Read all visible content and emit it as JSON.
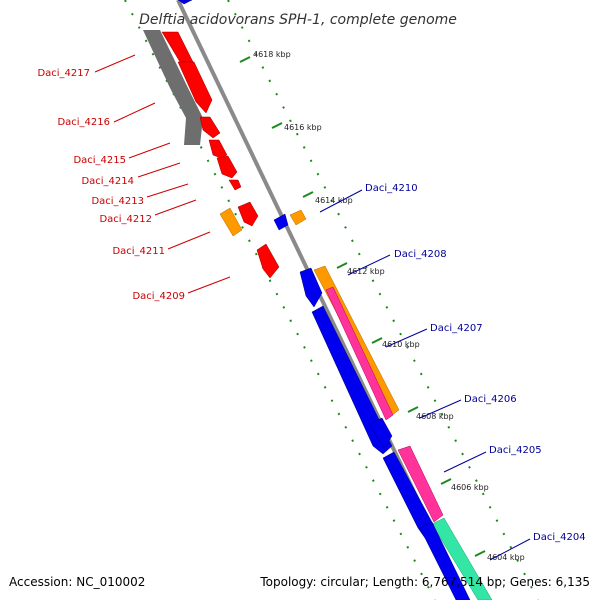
{
  "title": "Delftia acidovorans SPH-1, complete genome",
  "footer": {
    "accession": "Accession: NC_010002",
    "summary": "Topology: circular; Length: 6,767,514 bp; Genes: 6,135"
  },
  "colors": {
    "forward_label": "#cc0000",
    "reverse_label": "#000099",
    "backbone": "#888888",
    "tick_green": "#1a8a1a"
  },
  "scale_ticks": [
    "4618 kbp",
    "4616 kbp",
    "4614 kbp",
    "4612 kbp",
    "4610 kbp",
    "4608 kbp",
    "4606 kbp",
    "4604 kbp"
  ],
  "genes_left": [
    "Daci_4217",
    "Daci_4216",
    "Daci_4215",
    "Daci_4214",
    "Daci_4213",
    "Daci_4212",
    "Daci_4211",
    "Daci_4209"
  ],
  "genes_right": [
    "Daci_4210",
    "Daci_4208",
    "Daci_4207",
    "Daci_4206",
    "Daci_4205",
    "Daci_4204"
  ]
}
